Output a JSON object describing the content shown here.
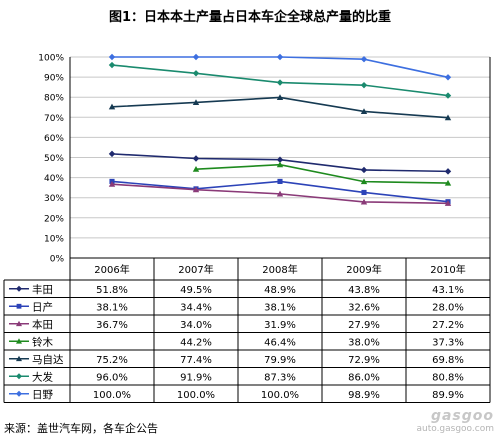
{
  "title": "图1：日本本土产量占日本车企全球总产量的比重",
  "source": "来源：盖世汽车网，各车企公告",
  "watermark": {
    "logo": "gasgoo",
    "url": "auto.gasgoo.com"
  },
  "colors": {
    "丰田": "#1f2a6e",
    "日产": "#2c43b8",
    "本田": "#8a3a78",
    "铃木": "#1e8a1e",
    "马自达": "#163a52",
    "大发": "#1a8a6e",
    "日野": "#3d6fe0"
  },
  "chart_data": {
    "type": "line",
    "title": "图1：日本本土产量占日本车企全球总产量的比重",
    "categories": [
      "2006年",
      "2007年",
      "2008年",
      "2009年",
      "2010年"
    ],
    "ylim": [
      0,
      100
    ],
    "y_ticks": [
      "0%",
      "10%",
      "20%",
      "30%",
      "40%",
      "50%",
      "60%",
      "70%",
      "80%",
      "90%",
      "100%"
    ],
    "grid": true,
    "legend": "table-below",
    "series": [
      {
        "name": "丰田",
        "marker": "diamond",
        "values": [
          51.8,
          49.5,
          48.9,
          43.8,
          43.1
        ],
        "labels": [
          "51.8%",
          "49.5%",
          "48.9%",
          "43.8%",
          "43.1%"
        ]
      },
      {
        "name": "日产",
        "marker": "square",
        "values": [
          38.1,
          34.4,
          38.1,
          32.6,
          28.0
        ],
        "labels": [
          "38.1%",
          "34.4%",
          "38.1%",
          "32.6%",
          "28.0%"
        ]
      },
      {
        "name": "本田",
        "marker": "triangle",
        "values": [
          36.7,
          34.0,
          31.9,
          27.9,
          27.2
        ],
        "labels": [
          "36.7%",
          "34.0%",
          "31.9%",
          "27.9%",
          "27.2%"
        ]
      },
      {
        "name": "铃木",
        "marker": "triangle",
        "values": [
          null,
          44.2,
          46.4,
          38.0,
          37.3
        ],
        "labels": [
          "",
          "44.2%",
          "46.4%",
          "38.0%",
          "37.3%"
        ]
      },
      {
        "name": "马自达",
        "marker": "triangle",
        "values": [
          75.2,
          77.4,
          79.9,
          72.9,
          69.8
        ],
        "labels": [
          "75.2%",
          "77.4%",
          "79.9%",
          "72.9%",
          "69.8%"
        ]
      },
      {
        "name": "大发",
        "marker": "diamond",
        "values": [
          96.0,
          91.9,
          87.3,
          86.0,
          80.8
        ],
        "labels": [
          "96.0%",
          "91.9%",
          "87.3%",
          "86.0%",
          "80.8%"
        ]
      },
      {
        "name": "日野",
        "marker": "diamond",
        "values": [
          100.0,
          100.0,
          100.0,
          98.9,
          89.9
        ],
        "labels": [
          "100.0%",
          "100.0%",
          "100.0%",
          "98.9%",
          "89.9%"
        ]
      }
    ]
  }
}
